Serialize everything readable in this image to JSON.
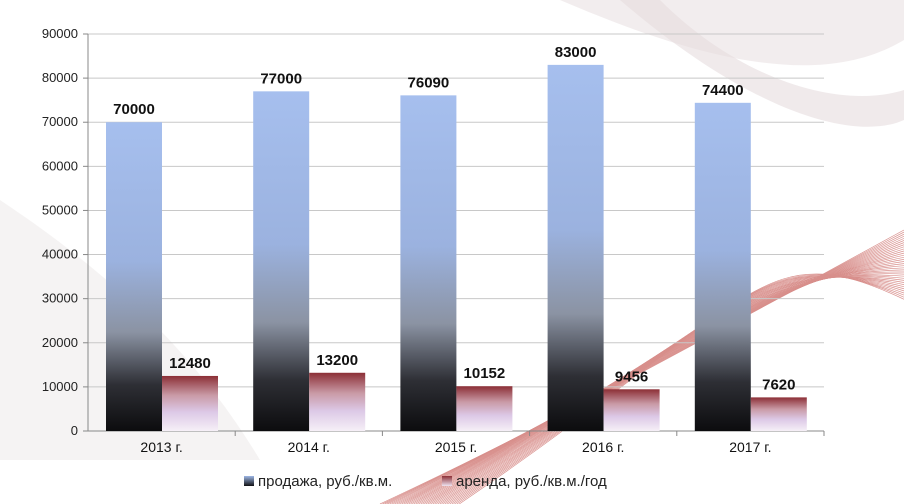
{
  "chart_data": {
    "type": "bar",
    "categories": [
      "2013 г.",
      "2014 г.",
      "2015 г.",
      "2016 г.",
      "2017 г."
    ],
    "series": [
      {
        "name": "продажа, руб./кв.м.",
        "values": [
          70000,
          77000,
          76090,
          83000,
          74400
        ]
      },
      {
        "name": "аренда, руб./кв.м./год",
        "values": [
          12480,
          13200,
          10152,
          9456,
          7620
        ]
      }
    ],
    "data_labels": [
      [
        "70000",
        "77000",
        "76090",
        "83000",
        "74400"
      ],
      [
        "12480",
        "13200",
        "10152",
        "9456",
        "7620"
      ]
    ],
    "y_ticks": [
      "0",
      "10000",
      "20000",
      "30000",
      "40000",
      "50000",
      "60000",
      "70000",
      "80000",
      "90000"
    ],
    "ylim": [
      0,
      90000
    ],
    "title": "",
    "xlabel": "",
    "ylabel": "",
    "grid": true,
    "legend_position": "bottom-center",
    "colors": {
      "sale_top": "#9db7e6",
      "sale_mid": "#98a7c2",
      "sale_bottom": "#0e0e10",
      "rent_top": "#8c2f36",
      "rent_mid": "#ddc7e4",
      "rent_bottom": "#f4eef6",
      "grid": "#c8c8c8",
      "axis": "#888888"
    }
  }
}
